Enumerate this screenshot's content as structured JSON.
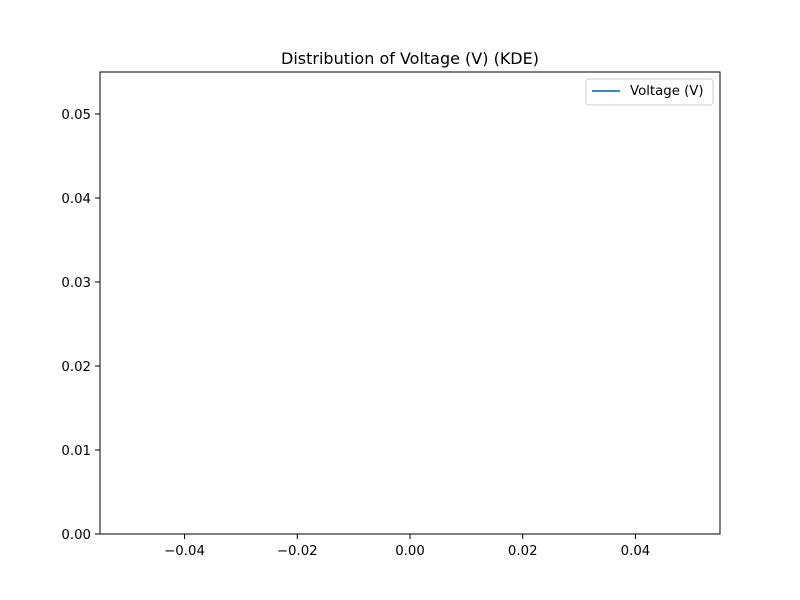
{
  "chart_data": {
    "type": "line",
    "title": "Distribution of Voltage (V) (KDE)",
    "xlabel": "",
    "ylabel": "",
    "xlim": [
      -0.055,
      0.055
    ],
    "ylim": [
      0,
      0.055
    ],
    "x_ticks": [
      -0.04,
      -0.02,
      0.0,
      0.02,
      0.04
    ],
    "x_tick_labels": [
      "−0.04",
      "−0.02",
      "0.00",
      "0.02",
      "0.04"
    ],
    "y_ticks": [
      0.0,
      0.01,
      0.02,
      0.03,
      0.04,
      0.05
    ],
    "y_tick_labels": [
      "0.00",
      "0.01",
      "0.02",
      "0.03",
      "0.04",
      "0.05"
    ],
    "grid": false,
    "legend_position": "top-right",
    "series": [
      {
        "name": "Voltage (V)",
        "color": "#1f77b4",
        "x": [],
        "y": []
      }
    ]
  }
}
